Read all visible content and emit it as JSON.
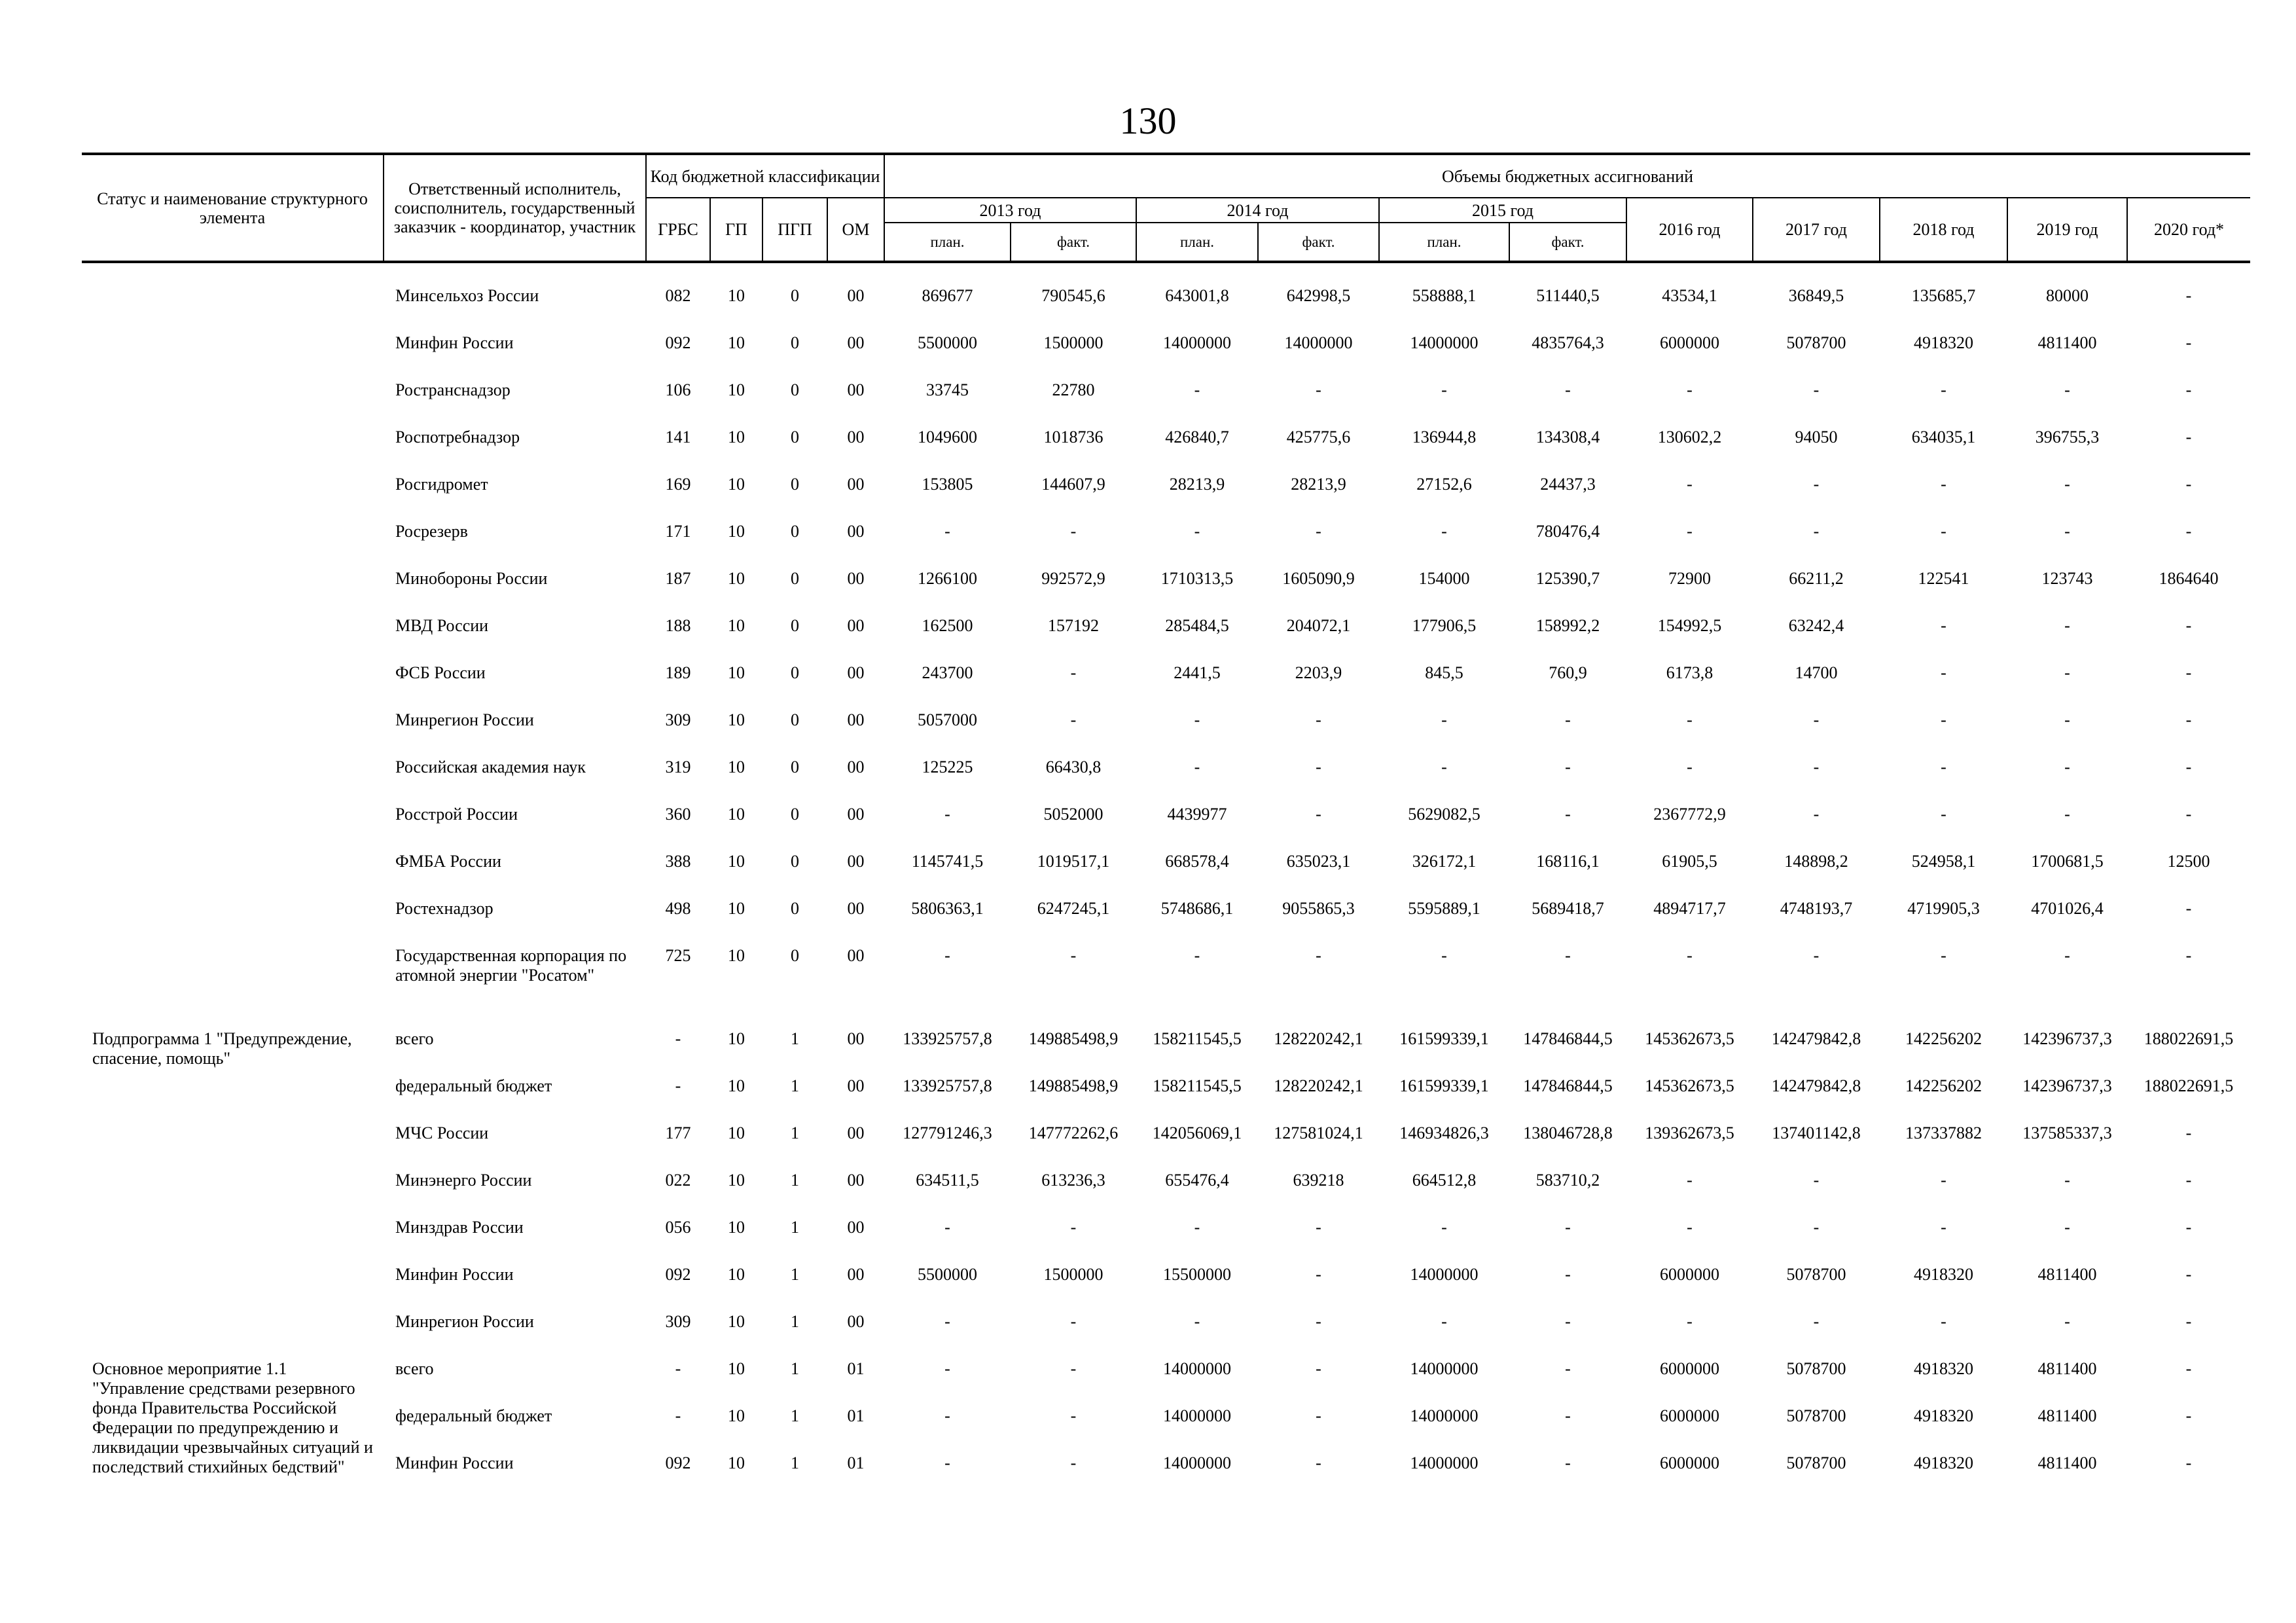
{
  "page_number": "130",
  "header": {
    "status": "Статус и наименование структурного элемента",
    "executor": "Ответственный исполнитель, соисполнитель, государственный заказчик - координатор, участник",
    "budget_code": "Код бюджетной классификации",
    "code_cols": [
      "ГРБС",
      "ГП",
      "ПГП",
      "ОМ"
    ],
    "volumes": "Объемы бюджетных ассигнований",
    "years_split": [
      "2013 год",
      "2014 год",
      "2015 год"
    ],
    "plan": "план.",
    "fact": "факт.",
    "years_single": [
      "2016 год",
      "2017 год",
      "2018 год",
      "2019 год",
      "2020 год*"
    ]
  },
  "groups": [
    {
      "status": "",
      "rows": [
        {
          "executor": "Минсельхоз России",
          "codes": [
            "082",
            "10",
            "0",
            "00"
          ],
          "values": [
            "869677",
            "790545,6",
            "643001,8",
            "642998,5",
            "558888,1",
            "511440,5",
            "43534,1",
            "36849,5",
            "135685,7",
            "80000",
            "-"
          ]
        },
        {
          "executor": "Минфин России",
          "codes": [
            "092",
            "10",
            "0",
            "00"
          ],
          "values": [
            "5500000",
            "1500000",
            "14000000",
            "14000000",
            "14000000",
            "4835764,3",
            "6000000",
            "5078700",
            "4918320",
            "4811400",
            "-"
          ]
        },
        {
          "executor": "Ространснадзор",
          "codes": [
            "106",
            "10",
            "0",
            "00"
          ],
          "values": [
            "33745",
            "22780",
            "-",
            "-",
            "-",
            "-",
            "-",
            "-",
            "-",
            "-",
            "-"
          ]
        },
        {
          "executor": "Роспотребнадзор",
          "codes": [
            "141",
            "10",
            "0",
            "00"
          ],
          "values": [
            "1049600",
            "1018736",
            "426840,7",
            "425775,6",
            "136944,8",
            "134308,4",
            "130602,2",
            "94050",
            "634035,1",
            "396755,3",
            "-"
          ]
        },
        {
          "executor": "Росгидромет",
          "codes": [
            "169",
            "10",
            "0",
            "00"
          ],
          "values": [
            "153805",
            "144607,9",
            "28213,9",
            "28213,9",
            "27152,6",
            "24437,3",
            "-",
            "-",
            "-",
            "-",
            "-"
          ]
        },
        {
          "executor": "Росрезерв",
          "codes": [
            "171",
            "10",
            "0",
            "00"
          ],
          "values": [
            "-",
            "-",
            "-",
            "-",
            "-",
            "780476,4",
            "-",
            "-",
            "-",
            "-",
            "-"
          ]
        },
        {
          "executor": "Минобороны России",
          "codes": [
            "187",
            "10",
            "0",
            "00"
          ],
          "values": [
            "1266100",
            "992572,9",
            "1710313,5",
            "1605090,9",
            "154000",
            "125390,7",
            "72900",
            "66211,2",
            "122541",
            "123743",
            "1864640"
          ]
        },
        {
          "executor": "МВД России",
          "codes": [
            "188",
            "10",
            "0",
            "00"
          ],
          "values": [
            "162500",
            "157192",
            "285484,5",
            "204072,1",
            "177906,5",
            "158992,2",
            "154992,5",
            "63242,4",
            "-",
            "-",
            "-"
          ]
        },
        {
          "executor": "ФСБ России",
          "codes": [
            "189",
            "10",
            "0",
            "00"
          ],
          "values": [
            "243700",
            "-",
            "2441,5",
            "2203,9",
            "845,5",
            "760,9",
            "6173,8",
            "14700",
            "-",
            "-",
            "-"
          ]
        },
        {
          "executor": "Минрегион России",
          "codes": [
            "309",
            "10",
            "0",
            "00"
          ],
          "values": [
            "5057000",
            "-",
            "-",
            "-",
            "-",
            "-",
            "-",
            "-",
            "-",
            "-",
            "-"
          ]
        },
        {
          "executor": "Российская академия наук",
          "codes": [
            "319",
            "10",
            "0",
            "00"
          ],
          "values": [
            "125225",
            "66430,8",
            "-",
            "-",
            "-",
            "-",
            "-",
            "-",
            "-",
            "-",
            "-"
          ]
        },
        {
          "executor": "Росстрой России",
          "codes": [
            "360",
            "10",
            "0",
            "00"
          ],
          "values": [
            "-",
            "5052000",
            "4439977",
            "-",
            "5629082,5",
            "-",
            "2367772,9",
            "-",
            "-",
            "-",
            "-"
          ]
        },
        {
          "executor": "ФМБА России",
          "codes": [
            "388",
            "10",
            "0",
            "00"
          ],
          "values": [
            "1145741,5",
            "1019517,1",
            "668578,4",
            "635023,1",
            "326172,1",
            "168116,1",
            "61905,5",
            "148898,2",
            "524958,1",
            "1700681,5",
            "12500"
          ]
        },
        {
          "executor": "Ростехнадзор",
          "codes": [
            "498",
            "10",
            "0",
            "00"
          ],
          "values": [
            "5806363,1",
            "6247245,1",
            "5748686,1",
            "9055865,3",
            "5595889,1",
            "5689418,7",
            "4894717,7",
            "4748193,7",
            "4719905,3",
            "4701026,4",
            "-"
          ]
        },
        {
          "executor": "Государственная корпорация по атомной энергии \"Росатом\"",
          "codes": [
            "725",
            "10",
            "0",
            "00"
          ],
          "values": [
            "-",
            "-",
            "-",
            "-",
            "-",
            "-",
            "-",
            "-",
            "-",
            "-",
            "-"
          ]
        }
      ]
    },
    {
      "status": "Подпрограмма 1 \"Предупреждение, спасение, помощь\"",
      "rows": [
        {
          "executor": "всего",
          "codes": [
            "-",
            "10",
            "1",
            "00"
          ],
          "values": [
            "133925757,8",
            "149885498,9",
            "158211545,5",
            "128220242,1",
            "161599339,1",
            "147846844,5",
            "145362673,5",
            "142479842,8",
            "142256202",
            "142396737,3",
            "188022691,5"
          ]
        },
        {
          "executor": "федеральный бюджет",
          "codes": [
            "-",
            "10",
            "1",
            "00"
          ],
          "values": [
            "133925757,8",
            "149885498,9",
            "158211545,5",
            "128220242,1",
            "161599339,1",
            "147846844,5",
            "145362673,5",
            "142479842,8",
            "142256202",
            "142396737,3",
            "188022691,5"
          ]
        },
        {
          "executor": "МЧС России",
          "codes": [
            "177",
            "10",
            "1",
            "00"
          ],
          "values": [
            "127791246,3",
            "147772262,6",
            "142056069,1",
            "127581024,1",
            "146934826,3",
            "138046728,8",
            "139362673,5",
            "137401142,8",
            "137337882",
            "137585337,3",
            "-"
          ]
        },
        {
          "executor": "Минэнерго России",
          "codes": [
            "022",
            "10",
            "1",
            "00"
          ],
          "values": [
            "634511,5",
            "613236,3",
            "655476,4",
            "639218",
            "664512,8",
            "583710,2",
            "-",
            "-",
            "-",
            "-",
            "-"
          ]
        },
        {
          "executor": "Минздрав России",
          "codes": [
            "056",
            "10",
            "1",
            "00"
          ],
          "values": [
            "-",
            "-",
            "-",
            "-",
            "-",
            "-",
            "-",
            "-",
            "-",
            "-",
            "-"
          ]
        },
        {
          "executor": "Минфин России",
          "codes": [
            "092",
            "10",
            "1",
            "00"
          ],
          "values": [
            "5500000",
            "1500000",
            "15500000",
            "-",
            "14000000",
            "-",
            "6000000",
            "5078700",
            "4918320",
            "4811400",
            "-"
          ]
        },
        {
          "executor": "Минрегион России",
          "codes": [
            "309",
            "10",
            "1",
            "00"
          ],
          "values": [
            "-",
            "-",
            "-",
            "-",
            "-",
            "-",
            "-",
            "-",
            "-",
            "-",
            "-"
          ]
        }
      ]
    },
    {
      "status": "Основное мероприятие 1.1 \"Управление средствами резервного фонда Правительства Российской Федерации по предупреждению и ликвидации чрезвычайных ситуаций и последствий стихийных бедствий\"",
      "rows": [
        {
          "executor": "всего",
          "codes": [
            "-",
            "10",
            "1",
            "01"
          ],
          "values": [
            "-",
            "-",
            "14000000",
            "-",
            "14000000",
            "-",
            "6000000",
            "5078700",
            "4918320",
            "4811400",
            "-"
          ]
        },
        {
          "executor": "федеральный бюджет",
          "codes": [
            "-",
            "10",
            "1",
            "01"
          ],
          "values": [
            "-",
            "-",
            "14000000",
            "-",
            "14000000",
            "-",
            "6000000",
            "5078700",
            "4918320",
            "4811400",
            "-"
          ]
        },
        {
          "executor": "Минфин России",
          "codes": [
            "092",
            "10",
            "1",
            "01"
          ],
          "values": [
            "-",
            "-",
            "14000000",
            "-",
            "14000000",
            "-",
            "6000000",
            "5078700",
            "4918320",
            "4811400",
            "-"
          ]
        }
      ]
    }
  ]
}
